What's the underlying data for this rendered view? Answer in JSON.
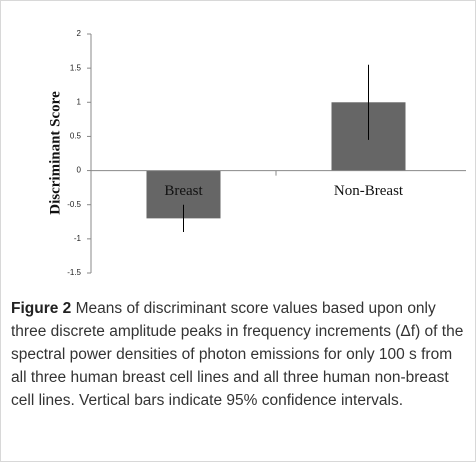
{
  "chart_data": {
    "type": "bar",
    "y_label": "Discriminant Score",
    "categories": [
      "Breast",
      "Non-Breast"
    ],
    "values": [
      -0.7,
      1.0
    ],
    "errors": [
      0.2,
      0.55
    ],
    "color": "#666666",
    "ylim": [
      -1.5,
      2
    ],
    "yticks": [
      -1.5,
      -1,
      -0.5,
      0,
      0.5,
      1,
      1.5,
      2
    ],
    "grid": false
  },
  "caption": {
    "label": "Figure 2",
    "text": "Means of discriminant score values based upon only three discrete amplitude peaks in frequency increments (Δf) of the spectral power densities of photon emissions for only 100 s from all three human breast cell lines and all three human non-breast cell lines. Vertical bars indicate 95% confidence intervals."
  }
}
